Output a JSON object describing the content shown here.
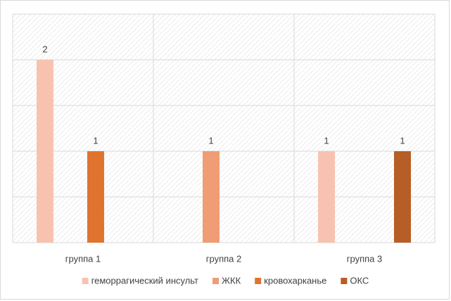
{
  "chart_data": {
    "type": "bar",
    "categories": [
      "группа 1",
      "группа 2",
      "группа 3"
    ],
    "series": [
      {
        "name": "геморрагический инсульт",
        "color": "#f7c3b0",
        "values": [
          2,
          null,
          1
        ]
      },
      {
        "name": "ЖКК",
        "color": "#f09c74",
        "values": [
          null,
          1,
          null
        ]
      },
      {
        "name": "кровохарканье",
        "color": "#e0742e",
        "values": [
          1,
          null,
          null
        ]
      },
      {
        "name": "ОКС",
        "color": "#b65e25",
        "values": [
          null,
          null,
          1
        ]
      }
    ],
    "ylim": [
      0,
      2.5
    ],
    "yticks": [
      0,
      0.5,
      1,
      1.5,
      2,
      2.5
    ],
    "grid": true,
    "legend": "bottom"
  }
}
